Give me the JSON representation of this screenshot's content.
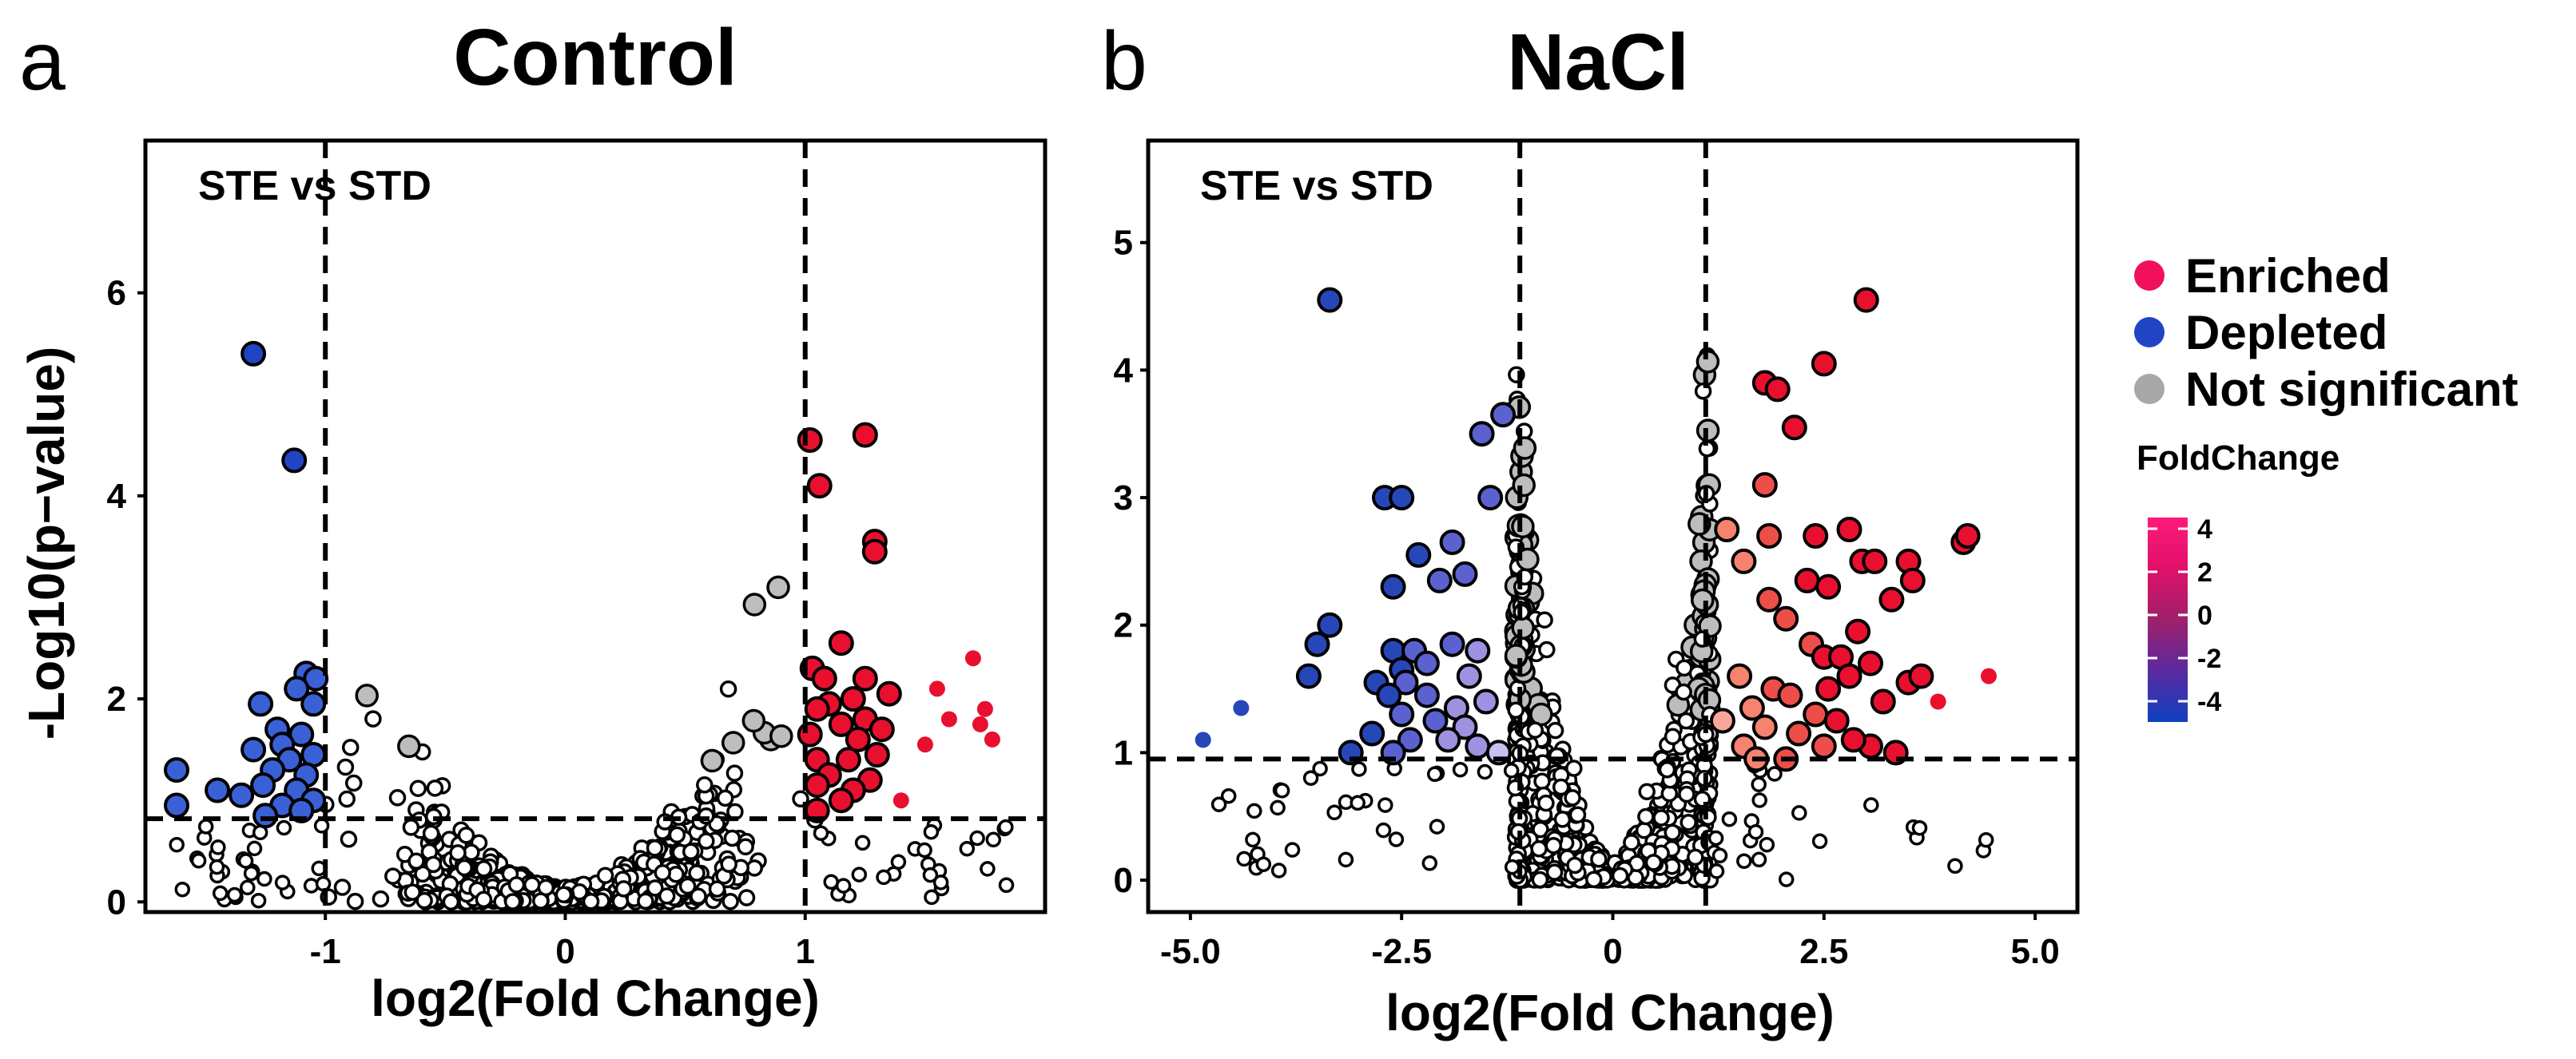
{
  "chart_data": [
    {
      "type": "scatter",
      "panel_label": "a",
      "title": "Control",
      "annotation": "STE vs STD",
      "xlabel": "log2(Fold Change)",
      "ylabel": "-Log10(p−value)",
      "xlim": [
        -1.75,
        2.0
      ],
      "ylim": [
        -0.1,
        7.5
      ],
      "xticks": [
        -1,
        0,
        1
      ],
      "xtick_labels": [
        "-1",
        "0",
        "1"
      ],
      "yticks": [
        0,
        2,
        4,
        6
      ],
      "ytick_labels": [
        "0",
        "2",
        "4",
        "6"
      ],
      "thresholds": {
        "fold_change": [
          -1,
          1
        ],
        "neg_log10_p": 0.82
      },
      "series": [
        {
          "name": "Enriched",
          "color": "#e8102e",
          "points": [
            [
              1.02,
              4.55
            ],
            [
              1.25,
              4.6
            ],
            [
              1.06,
              4.1
            ],
            [
              1.29,
              3.55
            ],
            [
              1.29,
              3.45
            ],
            [
              1.15,
              2.55
            ],
            [
              1.03,
              2.3
            ],
            [
              1.08,
              2.2
            ],
            [
              1.25,
              2.2
            ],
            [
              1.35,
              2.05
            ],
            [
              1.2,
              2.0
            ],
            [
              1.1,
              1.95
            ],
            [
              1.05,
              1.9
            ],
            [
              1.25,
              1.8
            ],
            [
              1.15,
              1.75
            ],
            [
              1.32,
              1.7
            ],
            [
              1.02,
              1.65
            ],
            [
              1.22,
              1.6
            ],
            [
              1.3,
              1.45
            ],
            [
              1.05,
              1.4
            ],
            [
              1.18,
              1.4
            ],
            [
              1.1,
              1.25
            ],
            [
              1.27,
              1.2
            ],
            [
              1.05,
              1.15
            ],
            [
              1.2,
              1.1
            ],
            [
              1.15,
              1.0
            ],
            [
              1.05,
              0.9
            ],
            [
              1.4,
              1.0
            ],
            [
              1.55,
              2.1
            ],
            [
              1.6,
              1.8
            ],
            [
              1.5,
              1.55
            ],
            [
              1.7,
              2.4
            ],
            [
              1.75,
              1.9
            ],
            [
              1.73,
              1.75
            ],
            [
              1.78,
              1.6
            ]
          ],
          "sized": [
            true,
            true,
            true,
            true,
            true,
            true,
            true,
            true,
            true,
            true,
            true,
            true,
            true,
            true,
            true,
            true,
            true,
            true,
            true,
            true,
            true,
            true,
            true,
            true,
            true,
            true,
            true,
            false,
            false,
            false,
            false,
            false,
            false,
            false,
            false
          ]
        },
        {
          "name": "Depleted",
          "color": "#2746b8",
          "points": [
            [
              -1.3,
              5.4
            ],
            [
              -1.13,
              4.35
            ],
            [
              -1.08,
              2.25
            ],
            [
              -1.04,
              2.2
            ],
            [
              -1.12,
              2.1
            ],
            [
              -1.05,
              1.95
            ],
            [
              -1.27,
              1.95
            ],
            [
              -1.2,
              1.7
            ],
            [
              -1.1,
              1.65
            ],
            [
              -1.18,
              1.55
            ],
            [
              -1.3,
              1.5
            ],
            [
              -1.05,
              1.45
            ],
            [
              -1.15,
              1.4
            ],
            [
              -1.22,
              1.3
            ],
            [
              -1.08,
              1.25
            ],
            [
              -1.26,
              1.15
            ],
            [
              -1.12,
              1.1
            ],
            [
              -1.05,
              1.0
            ],
            [
              -1.18,
              0.95
            ],
            [
              -1.1,
              0.9
            ],
            [
              -1.25,
              0.85
            ],
            [
              -1.62,
              1.3
            ],
            [
              -1.45,
              1.1
            ],
            [
              -1.35,
              1.05
            ],
            [
              -1.62,
              0.95
            ]
          ]
        },
        {
          "name": "Not significant",
          "color": "#bdbdbd"
        }
      ]
    },
    {
      "type": "scatter",
      "panel_label": "b",
      "title": "NaCl",
      "annotation": "STE vs STD",
      "xlabel": "log2(Fold Change)",
      "ylabel": "",
      "xlim": [
        -5.5,
        5.5
      ],
      "ylim": [
        -0.25,
        5.8
      ],
      "xticks": [
        -5.0,
        -2.5,
        0,
        2.5,
        5.0
      ],
      "xtick_labels": [
        "-5.0",
        "-2.5",
        "0",
        "2.5",
        "5.0"
      ],
      "yticks": [
        0,
        1,
        2,
        3,
        4,
        5
      ],
      "ytick_labels": [
        "0",
        "1",
        "2",
        "3",
        "4",
        "5"
      ],
      "thresholds": {
        "fold_change": [
          -1.1,
          1.1
        ],
        "neg_log10_p": 0.95
      },
      "series": [
        {
          "name": "Enriched",
          "color": "#e8102e",
          "points": [
            [
              3.0,
              4.55
            ],
            [
              2.5,
              4.05
            ],
            [
              1.8,
              3.9
            ],
            [
              1.95,
              3.85
            ],
            [
              2.15,
              3.55
            ],
            [
              1.8,
              3.1
            ],
            [
              1.35,
              2.75
            ],
            [
              1.85,
              2.7
            ],
            [
              2.4,
              2.7
            ],
            [
              2.8,
              2.75
            ],
            [
              2.95,
              2.5
            ],
            [
              3.1,
              2.5
            ],
            [
              4.15,
              2.65
            ],
            [
              4.2,
              2.7
            ],
            [
              3.5,
              2.5
            ],
            [
              3.55,
              2.35
            ],
            [
              2.3,
              2.35
            ],
            [
              2.55,
              2.3
            ],
            [
              3.3,
              2.2
            ],
            [
              1.85,
              2.2
            ],
            [
              2.05,
              2.05
            ],
            [
              1.55,
              2.5
            ],
            [
              2.9,
              1.95
            ],
            [
              2.35,
              1.85
            ],
            [
              2.5,
              1.75
            ],
            [
              2.7,
              1.75
            ],
            [
              3.05,
              1.7
            ],
            [
              3.5,
              1.55
            ],
            [
              3.65,
              1.6
            ],
            [
              2.8,
              1.6
            ],
            [
              2.55,
              1.5
            ],
            [
              1.9,
              1.5
            ],
            [
              1.5,
              1.6
            ],
            [
              2.1,
              1.45
            ],
            [
              3.2,
              1.4
            ],
            [
              1.65,
              1.35
            ],
            [
              2.4,
              1.3
            ],
            [
              2.65,
              1.25
            ],
            [
              1.3,
              1.25
            ],
            [
              1.8,
              1.2
            ],
            [
              2.2,
              1.15
            ],
            [
              2.5,
              1.05
            ],
            [
              3.05,
              1.05
            ],
            [
              3.35,
              1.0
            ],
            [
              1.55,
              1.05
            ],
            [
              2.85,
              1.1
            ],
            [
              1.7,
              0.95
            ],
            [
              2.05,
              0.95
            ],
            [
              4.45,
              1.6
            ],
            [
              3.85,
              1.4
            ]
          ],
          "sized": [
            true,
            true,
            true,
            true,
            true,
            true,
            true,
            true,
            true,
            true,
            true,
            true,
            true,
            true,
            true,
            true,
            true,
            true,
            true,
            true,
            true,
            true,
            true,
            true,
            true,
            true,
            true,
            true,
            true,
            true,
            true,
            true,
            true,
            true,
            true,
            true,
            true,
            true,
            true,
            true,
            true,
            true,
            true,
            true,
            true,
            true,
            true,
            true,
            false,
            false
          ]
        },
        {
          "name": "Depleted",
          "color": "#2746b8",
          "points": [
            [
              -3.35,
              4.55
            ],
            [
              -1.3,
              3.65
            ],
            [
              -1.45,
              3.0
            ],
            [
              -2.7,
              3.0
            ],
            [
              -2.5,
              3.0
            ],
            [
              -1.55,
              3.5
            ],
            [
              -1.9,
              2.65
            ],
            [
              -2.3,
              2.55
            ],
            [
              -1.75,
              2.4
            ],
            [
              -2.6,
              2.3
            ],
            [
              -2.05,
              2.35
            ],
            [
              -3.35,
              2.0
            ],
            [
              -3.5,
              1.85
            ],
            [
              -3.6,
              1.6
            ],
            [
              -2.6,
              1.8
            ],
            [
              -2.35,
              1.8
            ],
            [
              -2.5,
              1.65
            ],
            [
              -2.2,
              1.7
            ],
            [
              -1.9,
              1.85
            ],
            [
              -1.6,
              1.8
            ],
            [
              -1.7,
              1.6
            ],
            [
              -2.45,
              1.55
            ],
            [
              -2.8,
              1.55
            ],
            [
              -2.65,
              1.45
            ],
            [
              -2.2,
              1.45
            ],
            [
              -1.5,
              1.4
            ],
            [
              -1.85,
              1.35
            ],
            [
              -2.5,
              1.3
            ],
            [
              -2.1,
              1.25
            ],
            [
              -1.75,
              1.2
            ],
            [
              -2.85,
              1.15
            ],
            [
              -2.4,
              1.1
            ],
            [
              -1.95,
              1.1
            ],
            [
              -1.6,
              1.05
            ],
            [
              -2.6,
              1.0
            ],
            [
              -3.1,
              1.0
            ],
            [
              -1.35,
              1.0
            ],
            [
              -4.4,
              1.35
            ],
            [
              -4.85,
              1.1
            ]
          ],
          "sized": [
            true,
            true,
            true,
            true,
            true,
            true,
            true,
            true,
            true,
            true,
            true,
            true,
            true,
            true,
            true,
            true,
            true,
            true,
            true,
            true,
            true,
            true,
            true,
            true,
            true,
            true,
            true,
            true,
            true,
            true,
            true,
            true,
            true,
            true,
            true,
            true,
            true,
            false,
            false
          ]
        },
        {
          "name": "Not significant",
          "color": "#bdbdbd"
        }
      ]
    }
  ],
  "legend": {
    "items": [
      {
        "label": "Enriched",
        "color": "#f0105c"
      },
      {
        "label": "Depleted",
        "color": "#1f44c4"
      },
      {
        "label": "Not significant",
        "color": "#a8a8a8"
      }
    ],
    "colorbar_title": "FoldChange",
    "colorbar_ticks": [
      "4",
      "2",
      "0",
      "-2",
      "-4"
    ],
    "colorbar_colors": [
      "#ff1a7a",
      "#e0106a",
      "#a0206a",
      "#5a2aa0",
      "#1040c0"
    ]
  }
}
